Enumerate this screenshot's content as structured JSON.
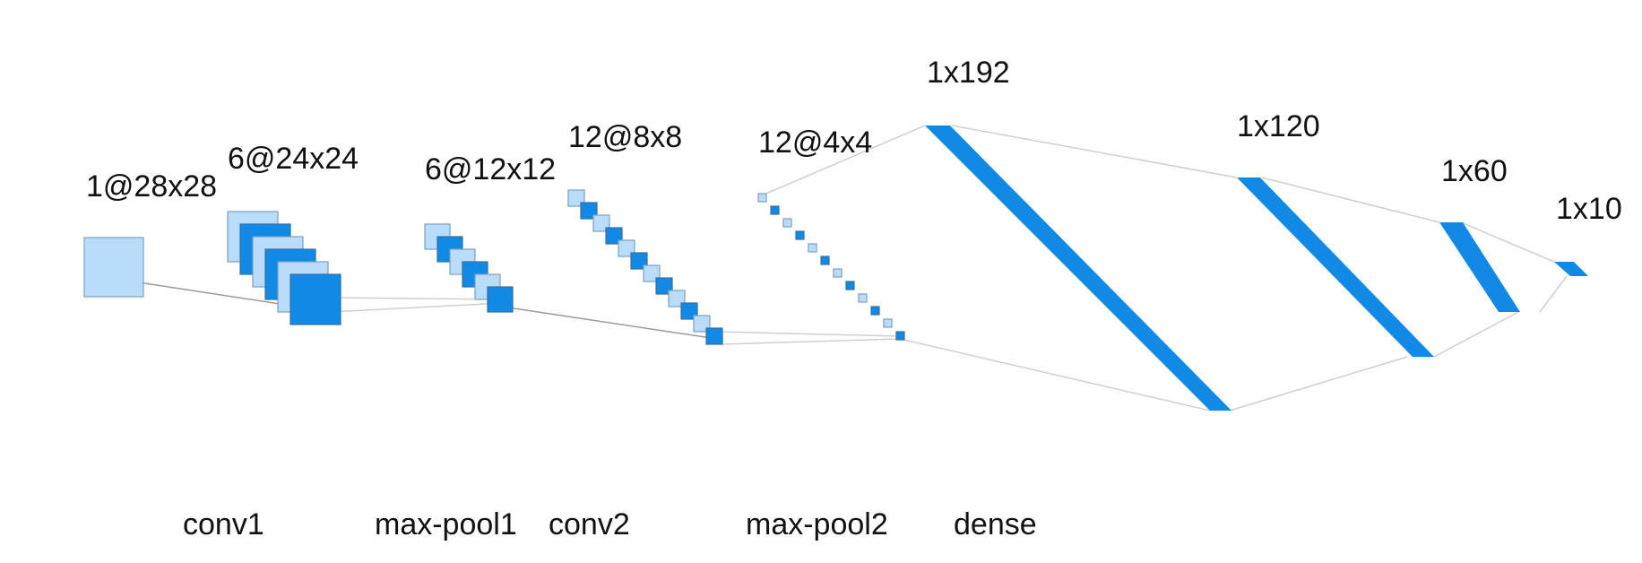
{
  "layers": [
    {
      "id": "input",
      "shape": "1@28x28"
    },
    {
      "id": "conv1-out",
      "shape": "6@24x24"
    },
    {
      "id": "pool1-out",
      "shape": "6@12x12"
    },
    {
      "id": "conv2-out",
      "shape": "12@8x8"
    },
    {
      "id": "pool2-out",
      "shape": "12@4x4"
    },
    {
      "id": "dense-192",
      "shape": "1x192"
    },
    {
      "id": "dense-120",
      "shape": "1x120"
    },
    {
      "id": "dense-60",
      "shape": "1x60"
    },
    {
      "id": "dense-10",
      "shape": "1x10"
    }
  ],
  "operations": [
    "conv1",
    "max-pool1",
    "conv2",
    "max-pool2",
    "dense"
  ],
  "colors": {
    "light_map": "#b9dcfa",
    "dark_map": "#118ae6",
    "connector": "#cfcfcf"
  }
}
